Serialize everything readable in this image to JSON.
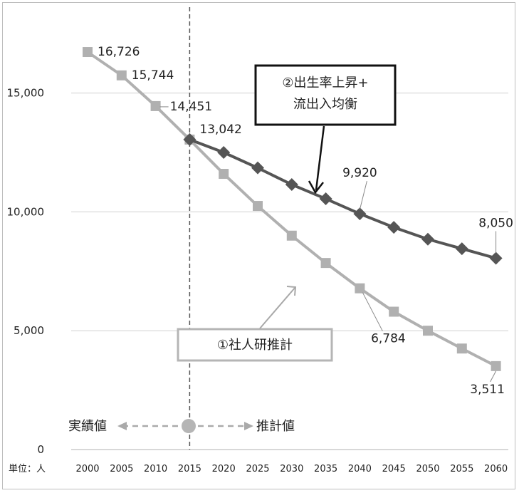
{
  "chart_data": {
    "type": "line",
    "x": [
      2000,
      2005,
      2010,
      2015,
      2020,
      2025,
      2030,
      2035,
      2040,
      2045,
      2050,
      2055,
      2060
    ],
    "ylim": [
      0,
      17000
    ],
    "y_ticks": [
      "0",
      "5,000",
      "10,000",
      "15,000"
    ],
    "x_ticks": [
      "2000",
      "2005",
      "2010",
      "2015",
      "2020",
      "2025",
      "2030",
      "2035",
      "2040",
      "2045",
      "2050",
      "2055",
      "2060"
    ],
    "series": [
      {
        "name": "①社人研推計",
        "x": [
          2000,
          2005,
          2010,
          2015,
          2020,
          2025,
          2030,
          2035,
          2040,
          2045,
          2050,
          2055,
          2060
        ],
        "values": [
          16726,
          15744,
          14451,
          13042,
          11600,
          10250,
          9000,
          7850,
          6784,
          5800,
          5000,
          4250,
          3511
        ],
        "color": "#b0b0b0",
        "marker": "square"
      },
      {
        "name": "②出生率上昇+流出入均衡",
        "x": [
          2015,
          2020,
          2025,
          2030,
          2035,
          2040,
          2045,
          2050,
          2055,
          2060
        ],
        "values": [
          13042,
          12500,
          11850,
          11150,
          10550,
          9920,
          9350,
          8850,
          8450,
          8050
        ],
        "color": "#555555",
        "marker": "diamond"
      }
    ],
    "data_labels": [
      {
        "x": 2000,
        "y": 16726,
        "text": "16,726"
      },
      {
        "x": 2005,
        "y": 15744,
        "text": "15,744"
      },
      {
        "x": 2010,
        "y": 14451,
        "text": "14,451"
      },
      {
        "x": 2015,
        "y": 13042,
        "text": "13,042"
      },
      {
        "x": 2040,
        "y": 9920,
        "text": "9,920"
      },
      {
        "x": 2060,
        "y": 8050,
        "text": "8,050"
      },
      {
        "x": 2040,
        "y": 6784,
        "text": "6,784"
      },
      {
        "x": 2060,
        "y": 3511,
        "text": "3,511"
      }
    ],
    "vline_year": 2015,
    "legend_1": "①社人研推計",
    "legend_2_line1": "②出生率上昇+",
    "legend_2_line2": "流出入均衡",
    "actual_label": "実績値",
    "projected_label": "推計値",
    "unit_label": "単位：人",
    "grid": true
  }
}
